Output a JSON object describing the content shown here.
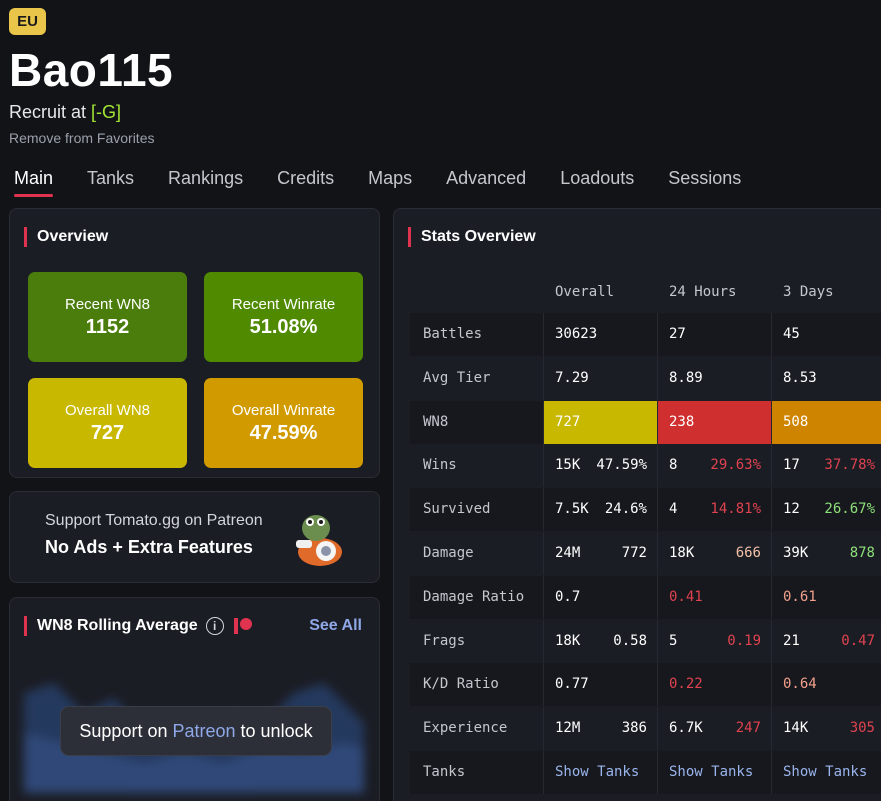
{
  "header": {
    "region": "EU",
    "player_name": "Bao115",
    "role_prefix": "Recruit at ",
    "clan_tag": "[-G]",
    "favorite_action": "Remove from Favorites"
  },
  "tabs": [
    "Main",
    "Tanks",
    "Rankings",
    "Credits",
    "Maps",
    "Advanced",
    "Loadouts",
    "Sessions"
  ],
  "overview": {
    "title": "Overview",
    "tiles": [
      {
        "label": "Recent WN8",
        "value": "1152",
        "color": "#4a7d0b"
      },
      {
        "label": "Recent Winrate",
        "value": "51.08%",
        "color": "#4f8a00"
      },
      {
        "label": "Overall WN8",
        "value": "727",
        "color": "#c9b800"
      },
      {
        "label": "Overall Winrate",
        "value": "47.59%",
        "color": "#d19b00"
      }
    ]
  },
  "patreon": {
    "line1": "Support Tomato.gg on Patreon",
    "line2": "No Ads + Extra Features"
  },
  "wn8_rolling": {
    "title": "WN8 Rolling Average",
    "see_all": "See All",
    "unlock_prefix": "Support on",
    "unlock_link": "Patreon",
    "unlock_suffix": "to unlock"
  },
  "stats": {
    "title": "Stats Overview",
    "columns": [
      "Overall",
      "24 Hours",
      "3 Days"
    ],
    "rows": [
      {
        "label": "Battles",
        "cells": [
          [
            "30623",
            ""
          ],
          [
            "27",
            ""
          ],
          [
            "45",
            ""
          ]
        ]
      },
      {
        "label": "Avg Tier",
        "cells": [
          [
            "7.29",
            ""
          ],
          [
            "8.89",
            ""
          ],
          [
            "8.53",
            ""
          ]
        ]
      },
      {
        "label": "WN8",
        "cells": [
          [
            "727",
            ""
          ],
          [
            "238",
            ""
          ],
          [
            "508",
            ""
          ]
        ]
      },
      {
        "label": "Wins",
        "cells": [
          [
            "15K",
            "47.59%"
          ],
          [
            "8",
            "29.63%"
          ],
          [
            "17",
            "37.78%"
          ]
        ]
      },
      {
        "label": "Survived",
        "cells": [
          [
            "7.5K",
            "24.6%"
          ],
          [
            "4",
            "14.81%"
          ],
          [
            "12",
            "26.67%"
          ]
        ]
      },
      {
        "label": "Damage",
        "cells": [
          [
            "24M",
            "772"
          ],
          [
            "18K",
            "666"
          ],
          [
            "39K",
            "878"
          ]
        ]
      },
      {
        "label": "Damage Ratio",
        "cells": [
          [
            "0.7",
            ""
          ],
          [
            "0.41",
            ""
          ],
          [
            "0.61",
            ""
          ]
        ]
      },
      {
        "label": "Frags",
        "cells": [
          [
            "18K",
            "0.58"
          ],
          [
            "5",
            "0.19"
          ],
          [
            "21",
            "0.47"
          ]
        ]
      },
      {
        "label": "K/D Ratio",
        "cells": [
          [
            "0.77",
            ""
          ],
          [
            "0.22",
            ""
          ],
          [
            "0.64",
            ""
          ]
        ]
      },
      {
        "label": "Experience",
        "cells": [
          [
            "12M",
            "386"
          ],
          [
            "6.7K",
            "247"
          ],
          [
            "14K",
            "305"
          ]
        ]
      },
      {
        "label": "Tanks",
        "cells": [
          [
            "Show Tanks",
            ""
          ],
          [
            "Show Tanks",
            ""
          ],
          [
            "Show Tanks",
            ""
          ]
        ]
      }
    ],
    "wn8_colors": [
      "#c9b800",
      "#cf2f2f",
      "#cf8400"
    ]
  }
}
